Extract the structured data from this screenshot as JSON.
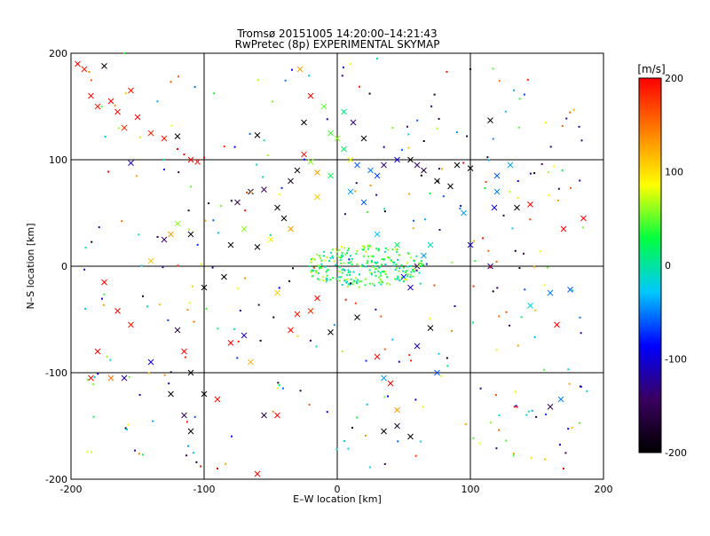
{
  "title_line1": "Tromsø 20151005  14:20:00–14:21:43",
  "title_line2": "RwPretec (8p) EXPERIMENTAL SKYMAP",
  "chart_data": {
    "type": "scatter",
    "xlabel": "E–W location [km]",
    "ylabel": "N–S location [km]",
    "xlim": [
      -200,
      200
    ],
    "ylim": [
      -200,
      200
    ],
    "xticks": [
      -200,
      -100,
      0,
      100,
      200
    ],
    "yticks": [
      -200,
      -100,
      0,
      100,
      200
    ],
    "grid": true,
    "colorbar": {
      "label": "[m/s]",
      "range": [
        -200,
        200
      ],
      "ticks": [
        200,
        100,
        0,
        -100,
        -200
      ],
      "colors": [
        "#000000",
        "#3a0060",
        "#0000ff",
        "#00c8ff",
        "#00ff40",
        "#ffff00",
        "#ff8000",
        "#ff0000"
      ]
    },
    "markers": [
      "cross",
      "dot"
    ],
    "points": [
      {
        "x": -195,
        "y": 190,
        "v": 200,
        "m": "cross"
      },
      {
        "x": -190,
        "y": 185,
        "v": 190,
        "m": "cross"
      },
      {
        "x": -185,
        "y": 160,
        "v": 200,
        "m": "cross"
      },
      {
        "x": -180,
        "y": 150,
        "v": 190,
        "m": "cross"
      },
      {
        "x": -175,
        "y": 188,
        "v": -200,
        "m": "cross"
      },
      {
        "x": -170,
        "y": 155,
        "v": 200,
        "m": "cross"
      },
      {
        "x": -165,
        "y": 145,
        "v": 195,
        "m": "cross"
      },
      {
        "x": -160,
        "y": 130,
        "v": 180,
        "m": "cross"
      },
      {
        "x": -155,
        "y": 165,
        "v": 190,
        "m": "cross"
      },
      {
        "x": -150,
        "y": 140,
        "v": 200,
        "m": "cross"
      },
      {
        "x": -140,
        "y": 125,
        "v": 185,
        "m": "cross"
      },
      {
        "x": -130,
        "y": 120,
        "v": 190,
        "m": "cross"
      },
      {
        "x": -120,
        "y": 110,
        "v": 200,
        "m": "dot"
      },
      {
        "x": -115,
        "y": 105,
        "v": 195,
        "m": "dot"
      },
      {
        "x": -110,
        "y": 100,
        "v": 200,
        "m": "cross"
      },
      {
        "x": -105,
        "y": 98,
        "v": 190,
        "m": "cross"
      },
      {
        "x": -100,
        "y": 102,
        "v": 200,
        "m": "dot"
      },
      {
        "x": -155,
        "y": 97,
        "v": -120,
        "m": "cross"
      },
      {
        "x": -120,
        "y": 122,
        "v": -200,
        "m": "cross"
      },
      {
        "x": -60,
        "y": 123,
        "v": -200,
        "m": "cross"
      },
      {
        "x": -75,
        "y": 60,
        "v": -150,
        "m": "cross"
      },
      {
        "x": -65,
        "y": 70,
        "v": -170,
        "m": "cross"
      },
      {
        "x": -55,
        "y": 72,
        "v": -150,
        "m": "cross"
      },
      {
        "x": -45,
        "y": 55,
        "v": -200,
        "m": "cross"
      },
      {
        "x": -40,
        "y": 45,
        "v": -190,
        "m": "cross"
      },
      {
        "x": -35,
        "y": 80,
        "v": -180,
        "m": "cross"
      },
      {
        "x": -30,
        "y": 90,
        "v": -200,
        "m": "cross"
      },
      {
        "x": -25,
        "y": 105,
        "v": 190,
        "m": "cross"
      },
      {
        "x": -20,
        "y": 98,
        "v": 60,
        "m": "cross"
      },
      {
        "x": -15,
        "y": 88,
        "v": 130,
        "m": "cross"
      },
      {
        "x": -25,
        "y": 135,
        "v": -200,
        "m": "cross"
      },
      {
        "x": -20,
        "y": 160,
        "v": 200,
        "m": "cross"
      },
      {
        "x": -28,
        "y": 185,
        "v": 130,
        "m": "cross"
      },
      {
        "x": -10,
        "y": 150,
        "v": 50,
        "m": "cross"
      },
      {
        "x": -5,
        "y": 125,
        "v": 40,
        "m": "cross"
      },
      {
        "x": 0,
        "y": 120,
        "v": 60,
        "m": "cross"
      },
      {
        "x": 5,
        "y": 110,
        "v": 20,
        "m": "cross"
      },
      {
        "x": 10,
        "y": 100,
        "v": 80,
        "m": "cross"
      },
      {
        "x": 15,
        "y": 95,
        "v": -60,
        "m": "cross"
      },
      {
        "x": 25,
        "y": 90,
        "v": -50,
        "m": "cross"
      },
      {
        "x": 30,
        "y": 85,
        "v": -70,
        "m": "cross"
      },
      {
        "x": 35,
        "y": 95,
        "v": -130,
        "m": "cross"
      },
      {
        "x": 45,
        "y": 100,
        "v": -100,
        "m": "cross"
      },
      {
        "x": 55,
        "y": 100,
        "v": -200,
        "m": "cross"
      },
      {
        "x": 60,
        "y": 95,
        "v": -150,
        "m": "cross"
      },
      {
        "x": 65,
        "y": 90,
        "v": -170,
        "m": "cross"
      },
      {
        "x": 75,
        "y": 80,
        "v": -200,
        "m": "cross"
      },
      {
        "x": 85,
        "y": 75,
        "v": -190,
        "m": "cross"
      },
      {
        "x": 90,
        "y": 95,
        "v": -200,
        "m": "cross"
      },
      {
        "x": 100,
        "y": 92,
        "v": -200,
        "m": "cross"
      },
      {
        "x": 115,
        "y": 137,
        "v": -200,
        "m": "cross"
      },
      {
        "x": 120,
        "y": 85,
        "v": -60,
        "m": "cross"
      },
      {
        "x": 130,
        "y": 95,
        "v": -40,
        "m": "cross"
      },
      {
        "x": 135,
        "y": 55,
        "v": -200,
        "m": "cross"
      },
      {
        "x": 145,
        "y": 58,
        "v": 200,
        "m": "cross"
      },
      {
        "x": 170,
        "y": 35,
        "v": 200,
        "m": "cross"
      },
      {
        "x": 185,
        "y": 45,
        "v": 200,
        "m": "cross"
      },
      {
        "x": 118,
        "y": 55,
        "v": -100,
        "m": "cross"
      },
      {
        "x": 95,
        "y": 50,
        "v": -40,
        "m": "cross"
      },
      {
        "x": 100,
        "y": 20,
        "v": -110,
        "m": "cross"
      },
      {
        "x": 115,
        "y": 0,
        "v": -120,
        "m": "cross"
      },
      {
        "x": 145,
        "y": -37,
        "v": -20,
        "m": "cross"
      },
      {
        "x": 160,
        "y": -25,
        "v": -50,
        "m": "cross"
      },
      {
        "x": 175,
        "y": -22,
        "v": -60,
        "m": "cross"
      },
      {
        "x": 165,
        "y": -55,
        "v": 200,
        "m": "cross"
      },
      {
        "x": 160,
        "y": -132,
        "v": -150,
        "m": "cross"
      },
      {
        "x": 168,
        "y": -125,
        "v": -50,
        "m": "cross"
      },
      {
        "x": 120,
        "y": 70,
        "v": -50,
        "m": "cross"
      },
      {
        "x": -130,
        "y": 25,
        "v": -140,
        "m": "cross"
      },
      {
        "x": -125,
        "y": 30,
        "v": 130,
        "m": "cross"
      },
      {
        "x": -140,
        "y": 5,
        "v": 110,
        "m": "cross"
      },
      {
        "x": -120,
        "y": 40,
        "v": 60,
        "m": "cross"
      },
      {
        "x": -110,
        "y": 30,
        "v": -200,
        "m": "cross"
      },
      {
        "x": -100,
        "y": -20,
        "v": -200,
        "m": "cross"
      },
      {
        "x": -85,
        "y": -10,
        "v": -200,
        "m": "cross"
      },
      {
        "x": -80,
        "y": 20,
        "v": -190,
        "m": "cross"
      },
      {
        "x": -70,
        "y": 35,
        "v": 60,
        "m": "cross"
      },
      {
        "x": -60,
        "y": 18,
        "v": -200,
        "m": "cross"
      },
      {
        "x": -175,
        "y": -15,
        "v": 200,
        "m": "cross"
      },
      {
        "x": -165,
        "y": -42,
        "v": 200,
        "m": "cross"
      },
      {
        "x": -155,
        "y": -55,
        "v": 190,
        "m": "cross"
      },
      {
        "x": -180,
        "y": -80,
        "v": 200,
        "m": "cross"
      },
      {
        "x": -185,
        "y": -105,
        "v": 200,
        "m": "cross"
      },
      {
        "x": -170,
        "y": -105,
        "v": 150,
        "m": "cross"
      },
      {
        "x": -160,
        "y": -105,
        "v": -120,
        "m": "cross"
      },
      {
        "x": -140,
        "y": -90,
        "v": -100,
        "m": "cross"
      },
      {
        "x": -120,
        "y": -60,
        "v": -160,
        "m": "cross"
      },
      {
        "x": -115,
        "y": -80,
        "v": 200,
        "m": "cross"
      },
      {
        "x": -110,
        "y": -100,
        "v": -200,
        "m": "cross"
      },
      {
        "x": -125,
        "y": -120,
        "v": -200,
        "m": "cross"
      },
      {
        "x": -115,
        "y": -140,
        "v": -140,
        "m": "cross"
      },
      {
        "x": -110,
        "y": -155,
        "v": -200,
        "m": "cross"
      },
      {
        "x": -100,
        "y": -120,
        "v": -200,
        "m": "cross"
      },
      {
        "x": -90,
        "y": -125,
        "v": 200,
        "m": "cross"
      },
      {
        "x": -80,
        "y": -72,
        "v": 200,
        "m": "cross"
      },
      {
        "x": -70,
        "y": -65,
        "v": -120,
        "m": "cross"
      },
      {
        "x": -65,
        "y": -90,
        "v": 120,
        "m": "cross"
      },
      {
        "x": -55,
        "y": -140,
        "v": -160,
        "m": "cross"
      },
      {
        "x": -45,
        "y": -140,
        "v": 200,
        "m": "cross"
      },
      {
        "x": -60,
        "y": -195,
        "v": 200,
        "m": "cross"
      },
      {
        "x": -35,
        "y": -60,
        "v": 200,
        "m": "cross"
      },
      {
        "x": -30,
        "y": -45,
        "v": 190,
        "m": "cross"
      },
      {
        "x": -20,
        "y": -42,
        "v": 180,
        "m": "cross"
      },
      {
        "x": -15,
        "y": -30,
        "v": 200,
        "m": "cross"
      },
      {
        "x": -5,
        "y": -62,
        "v": -200,
        "m": "cross"
      },
      {
        "x": 15,
        "y": -48,
        "v": -200,
        "m": "cross"
      },
      {
        "x": 30,
        "y": -85,
        "v": 200,
        "m": "cross"
      },
      {
        "x": 35,
        "y": -105,
        "v": -40,
        "m": "cross"
      },
      {
        "x": 40,
        "y": -110,
        "v": 200,
        "m": "cross"
      },
      {
        "x": 45,
        "y": -135,
        "v": 130,
        "m": "cross"
      },
      {
        "x": 35,
        "y": -155,
        "v": -200,
        "m": "cross"
      },
      {
        "x": 45,
        "y": -150,
        "v": -170,
        "m": "cross"
      },
      {
        "x": 55,
        "y": -160,
        "v": -200,
        "m": "cross"
      },
      {
        "x": 70,
        "y": -58,
        "v": -200,
        "m": "cross"
      },
      {
        "x": 75,
        "y": -100,
        "v": -60,
        "m": "cross"
      },
      {
        "x": 60,
        "y": -75,
        "v": -120,
        "m": "cross"
      },
      {
        "x": 55,
        "y": -20,
        "v": -110,
        "m": "cross"
      },
      {
        "x": 50,
        "y": -10,
        "v": -80,
        "m": "cross"
      },
      {
        "x": 60,
        "y": 0,
        "v": -150,
        "m": "cross"
      },
      {
        "x": 65,
        "y": 10,
        "v": -40,
        "m": "cross"
      },
      {
        "x": 70,
        "y": 20,
        "v": -10,
        "m": "cross"
      },
      {
        "x": 45,
        "y": 20,
        "v": 20,
        "m": "cross"
      },
      {
        "x": 30,
        "y": 30,
        "v": -30,
        "m": "cross"
      },
      {
        "x": 20,
        "y": 60,
        "v": -60,
        "m": "cross"
      },
      {
        "x": 10,
        "y": 70,
        "v": -40,
        "m": "cross"
      },
      {
        "x": 20,
        "y": 120,
        "v": -200,
        "m": "cross"
      },
      {
        "x": 12,
        "y": 135,
        "v": -130,
        "m": "cross"
      },
      {
        "x": 5,
        "y": 145,
        "v": 10,
        "m": "cross"
      },
      {
        "x": -5,
        "y": 85,
        "v": 20,
        "m": "cross"
      },
      {
        "x": -15,
        "y": 65,
        "v": 110,
        "m": "cross"
      },
      {
        "x": -35,
        "y": 35,
        "v": 130,
        "m": "cross"
      },
      {
        "x": -50,
        "y": 25,
        "v": 90,
        "m": "cross"
      },
      {
        "x": -45,
        "y": -25,
        "v": 110,
        "m": "cross"
      },
      {
        "x": -90,
        "y": -190,
        "v": 200,
        "m": "dot"
      },
      {
        "x": 170,
        "y": -190,
        "v": 200,
        "m": "dot"
      },
      {
        "x": 100,
        "y": 185,
        "v": -200,
        "m": "dot"
      },
      {
        "x": -160,
        "y": 200,
        "v": 40,
        "m": "dot"
      },
      {
        "x": 30,
        "y": 195,
        "v": 0,
        "m": "dot"
      },
      {
        "x": 10,
        "y": 190,
        "v": 90,
        "m": "dot"
      }
    ],
    "cluster": {
      "cx": 20,
      "cy": 0,
      "rx": 45,
      "ry": 10,
      "v_min": -20,
      "v_max": 80
    }
  }
}
